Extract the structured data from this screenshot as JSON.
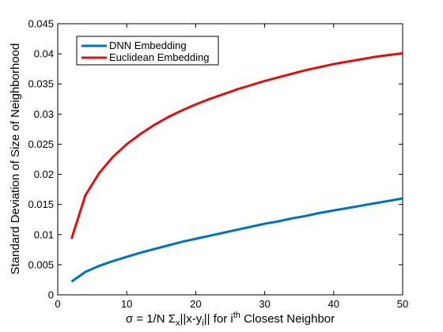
{
  "chart_data": {
    "type": "line",
    "title": "",
    "xlabel": {
      "prefix": "σ = 1/N Σ",
      "sub1": "x",
      "mid1": "||x-y",
      "sub2": "i",
      "mid2": "|| for i",
      "sup": "th",
      "suffix": " Closest Neighbor"
    },
    "ylabel": "Standard Deviation of Size of Neighborhood",
    "xlim": [
      0,
      50
    ],
    "ylim": [
      0,
      0.045
    ],
    "xticks": [
      "0",
      "10",
      "20",
      "30",
      "40",
      "50"
    ],
    "yticks": [
      "0",
      "0.005",
      "0.01",
      "0.015",
      "0.02",
      "0.025",
      "0.03",
      "0.035",
      "0.04",
      "0.045"
    ],
    "grid": false,
    "legend_position": "top-left",
    "series": [
      {
        "name": "DNN Embedding",
        "color": "#0072BD",
        "x": [
          2,
          4,
          6,
          8,
          10,
          12,
          14,
          16,
          18,
          20,
          22,
          24,
          26,
          28,
          30,
          32,
          34,
          36,
          38,
          40,
          42,
          44,
          46,
          48,
          50
        ],
        "y": [
          0.0022,
          0.0038,
          0.0048,
          0.0056,
          0.0063,
          0.007,
          0.0076,
          0.0082,
          0.0088,
          0.0093,
          0.0098,
          0.0103,
          0.0108,
          0.0113,
          0.0118,
          0.0122,
          0.0127,
          0.0131,
          0.0136,
          0.014,
          0.0144,
          0.0148,
          0.0152,
          0.0156,
          0.016
        ]
      },
      {
        "name": "Euclidean Embedding",
        "color": "#E01010",
        "x": [
          2,
          4,
          6,
          8,
          10,
          12,
          14,
          16,
          18,
          20,
          22,
          24,
          26,
          28,
          30,
          32,
          34,
          36,
          38,
          40,
          42,
          44,
          46,
          48,
          50
        ],
        "y": [
          0.0093,
          0.0165,
          0.0202,
          0.0229,
          0.025,
          0.0267,
          0.0282,
          0.0295,
          0.0306,
          0.0316,
          0.0325,
          0.0333,
          0.0341,
          0.0348,
          0.0355,
          0.0361,
          0.0367,
          0.0373,
          0.0378,
          0.0383,
          0.0387,
          0.0391,
          0.0395,
          0.0398,
          0.0401
        ]
      }
    ]
  }
}
